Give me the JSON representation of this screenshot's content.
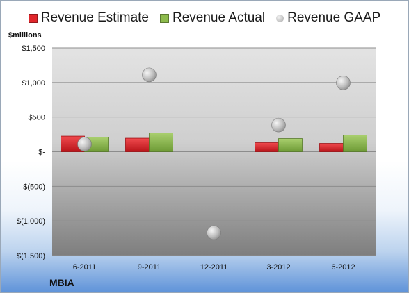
{
  "chart_data": {
    "type": "bar",
    "unit_label": "$millions",
    "categories": [
      "6-2011",
      "9-2011",
      "12-2011",
      "3-2012",
      "6-2012"
    ],
    "series": [
      {
        "name": "Revenue Estimate",
        "kind": "bar",
        "color": "#e0262b",
        "values": [
          225,
          195,
          null,
          130,
          120
        ]
      },
      {
        "name": "Revenue Actual",
        "kind": "bar",
        "color": "#8dbb4c",
        "values": [
          210,
          270,
          null,
          190,
          240
        ]
      },
      {
        "name": "Revenue GAAP",
        "kind": "marker",
        "color": "#b4b4b4",
        "values": [
          110,
          1110,
          -1170,
          385,
          995
        ]
      }
    ],
    "y_ticks": [
      1500,
      1000,
      500,
      0,
      -500,
      -1000,
      -1500
    ],
    "y_tick_labels": [
      "$1,500",
      "$1,000",
      "$500",
      "$-",
      "$(500)",
      "$(1,000)",
      "$(1,500)"
    ],
    "ylim": [
      -1500,
      1500
    ],
    "grid": true,
    "legend_position": "top"
  },
  "footer": {
    "brand": "MBIA"
  }
}
